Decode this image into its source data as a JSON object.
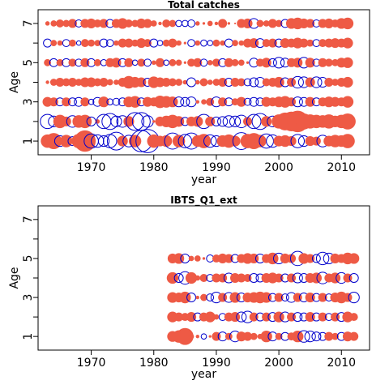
{
  "chart_data": [
    {
      "type": "scatter",
      "title": "Total catches",
      "xlabel": "year",
      "ylabel": "Age",
      "xlim": [
        1961.5,
        2014.5
      ],
      "ylim": [
        0.3,
        7.7
      ],
      "x_ticks": [
        1970,
        1980,
        1990,
        2000,
        2010
      ],
      "y_ticks": [
        1,
        3,
        5,
        7
      ],
      "ages": [
        1,
        2,
        3,
        4,
        5,
        6,
        7
      ],
      "years": [
        1963,
        1964,
        1965,
        1966,
        1967,
        1968,
        1969,
        1970,
        1971,
        1972,
        1973,
        1974,
        1975,
        1976,
        1977,
        1978,
        1979,
        1980,
        1981,
        1982,
        1983,
        1984,
        1985,
        1986,
        1987,
        1988,
        1989,
        1990,
        1991,
        1992,
        1993,
        1994,
        1995,
        1996,
        1997,
        1998,
        1999,
        2000,
        2001,
        2002,
        2003,
        2004,
        2005,
        2006,
        2007,
        2008,
        2009,
        2010,
        2011
      ],
      "positive_color": "#ee5a45",
      "negative_color": "#0000cc",
      "note_values": "signed residuals; positive = filled red, negative = open blue circle",
      "residuals": {
        "1": [
          1.5,
          1.8,
          -1.2,
          1.4,
          -1.0,
          1.6,
          2.4,
          -1.6,
          -1.4,
          -1.2,
          -1.5,
          -2.0,
          1.2,
          -1.3,
          1.4,
          -2.4,
          -2.6,
          1.5,
          1.2,
          1.3,
          -1.8,
          1.4,
          -1.5,
          -1.8,
          1.3,
          1.6,
          -1.4,
          -1.2,
          1.3,
          1.5,
          1.2,
          -1.9,
          1.6,
          1.8,
          1.4,
          -1.6,
          -1.4,
          1.2,
          1.3,
          1.1,
          -1.5,
          -1.2,
          1.1,
          1.0,
          -1.3,
          1.2,
          1.4,
          1.3,
          1.6
        ],
        "2": [
          -1.6,
          -1.2,
          1.5,
          1.1,
          -1.3,
          1.4,
          1.5,
          -1.0,
          0.5,
          -1.6,
          -1.8,
          -1.2,
          -1.3,
          1.2,
          -2.0,
          -2.0,
          -1.3,
          0.3,
          1.1,
          1.3,
          1.5,
          1.2,
          -0.9,
          1.1,
          1.2,
          -1.6,
          1.1,
          -1.0,
          -1.1,
          -1.3,
          -1.2,
          -1.4,
          1.0,
          -1.6,
          -1.8,
          1.2,
          -1.2,
          1.6,
          2.0,
          2.2,
          2.4,
          1.8,
          1.6,
          1.5,
          1.4,
          1.6,
          1.3,
          1.5,
          1.8
        ],
        "3": [
          1.1,
          1.0,
          -0.9,
          1.0,
          -0.9,
          -1.0,
          1.0,
          -0.6,
          -1.0,
          1.2,
          -0.7,
          -0.8,
          -0.9,
          1.2,
          1.3,
          -0.9,
          1.1,
          1.0,
          1.4,
          1.3,
          1.2,
          -1.1,
          -1.0,
          -1.1,
          0.4,
          0.6,
          0.9,
          -1.1,
          1.0,
          -0.9,
          0.8,
          1.1,
          -0.8,
          -1.0,
          -0.9,
          1.1,
          1.0,
          1.2,
          1.3,
          1.0,
          -1.1,
          -1.0,
          1.1,
          -0.9,
          1.0,
          1.2,
          1.1,
          1.0,
          1.3
        ],
        "4": [
          0.4,
          0.8,
          1.0,
          0.9,
          1.0,
          0.8,
          1.1,
          1.1,
          0.9,
          1.0,
          0.7,
          0.6,
          1.0,
          1.4,
          1.2,
          1.1,
          -0.9,
          1.3,
          1.1,
          1.0,
          0.9,
          0.8,
          0.5,
          -1.0,
          0.5,
          0.9,
          0.6,
          0.8,
          1.0,
          -0.9,
          1.0,
          0.9,
          -0.8,
          -1.0,
          -1.1,
          0.9,
          1.0,
          1.2,
          -1.0,
          1.0,
          -1.3,
          -1.2,
          1.1,
          -1.2,
          -1.1,
          1.0,
          0.8,
          1.0,
          1.2
        ],
        "5": [
          0.8,
          -0.9,
          0.8,
          -0.9,
          0.9,
          -0.8,
          1.0,
          -0.9,
          0.8,
          -0.7,
          1.0,
          1.1,
          -0.9,
          1.0,
          -0.6,
          0.9,
          -0.8,
          0.5,
          1.0,
          -0.6,
          0.8,
          0.7,
          0.3,
          0.9,
          1.0,
          -0.8,
          0.6,
          0.9,
          -0.9,
          1.0,
          0.8,
          0.7,
          0.3,
          -1.0,
          0.9,
          1.1,
          -0.9,
          -1.2,
          -1.0,
          1.0,
          1.1,
          -1.2,
          1.1,
          -0.8,
          1.0,
          0.9,
          0.8,
          1.1,
          1.2
        ],
        "6": [
          -0.9,
          0.7,
          0.6,
          -0.8,
          0.8,
          -0.5,
          0.9,
          0.8,
          0.7,
          -0.9,
          -0.8,
          0.6,
          1.0,
          1.0,
          0.8,
          1.1,
          0.9,
          -0.9,
          -0.6,
          0.8,
          1.0,
          0.6,
          0.3,
          -0.8,
          0.6,
          -0.7,
          -0.6,
          0.8,
          0.6,
          -0.9,
          0.7,
          0.6,
          1.0,
          1.1,
          -1.0,
          0.9,
          1.0,
          -0.9,
          1.1,
          1.0,
          1.2,
          1.0,
          0.8,
          -0.8,
          0.9,
          1.0,
          1.1,
          1.0,
          1.2
        ],
        "7": [
          0.5,
          0.7,
          0.9,
          0.8,
          1.0,
          -0.8,
          1.0,
          1.1,
          0.9,
          1.0,
          -0.9,
          1.0,
          1.2,
          0.9,
          0.8,
          1.1,
          1.0,
          0.7,
          0.4,
          0.9,
          0.8,
          -0.7,
          -0.7,
          -0.8,
          0.5,
          0.3,
          0.6,
          0.4,
          1.0,
          0.3,
          0.2,
          1.0,
          1.1,
          -1.1,
          0.8,
          0.7,
          1.0,
          0.8,
          -0.9,
          1.2,
          1.3,
          1.1,
          1.0,
          -0.8,
          1.0,
          1.1,
          0.9,
          1.2,
          1.3
        ]
      }
    },
    {
      "type": "scatter",
      "title": "IBTS_Q1_ext",
      "xlabel": "year",
      "ylabel": "Age",
      "xlim": [
        1961.5,
        2014.5
      ],
      "ylim": [
        0.3,
        7.7
      ],
      "x_ticks": [
        1970,
        1980,
        1990,
        2000,
        2010
      ],
      "y_ticks": [
        1,
        3,
        5,
        7
      ],
      "ages": [
        1,
        2,
        3,
        4,
        5
      ],
      "years": [
        1983,
        1984,
        1985,
        1986,
        1987,
        1988,
        1989,
        1990,
        1991,
        1992,
        1993,
        1994,
        1995,
        1996,
        1997,
        1998,
        1999,
        2000,
        2001,
        2002,
        2003,
        2004,
        2005,
        2006,
        2007,
        2008,
        2009,
        2010,
        2011,
        2012
      ],
      "positive_color": "#ee5a45",
      "negative_color": "#0000cc",
      "note_values": "signed residuals; positive = filled red, negative = open blue circle",
      "residuals": {
        "1": [
          1.2,
          1.4,
          1.9,
          0.6,
          0.4,
          -0.6,
          0.3,
          1.0,
          -1.0,
          0.8,
          -1.2,
          1.1,
          1.0,
          0.8,
          0.6,
          1.3,
          -1.0,
          0.8,
          -0.9,
          0.9,
          1.3,
          -1.3,
          -1.2,
          -1.0,
          -0.9,
          1.0,
          0.8,
          -0.9,
          1.1,
          1.0
        ],
        "2": [
          1.2,
          1.0,
          0.9,
          1.1,
          -0.9,
          1.0,
          1.2,
          0.6,
          -0.8,
          1.0,
          1.1,
          -1.1,
          -1.3,
          1.0,
          -0.9,
          1.0,
          -1.0,
          1.2,
          -1.1,
          1.0,
          -1.0,
          -0.9,
          1.1,
          -0.9,
          1.0,
          -0.8,
          1.0,
          -1.0,
          1.2,
          0.9
        ],
        "3": [
          1.2,
          1.1,
          1.3,
          -1.0,
          0.4,
          0.8,
          -0.8,
          -1.2,
          1.0,
          -1.1,
          1.2,
          -1.0,
          1.1,
          1.2,
          1.3,
          1.2,
          -0.9,
          1.0,
          -0.8,
          -1.1,
          1.0,
          -1.0,
          1.1,
          -0.9,
          1.0,
          -0.8,
          1.1,
          1.3,
          1.0,
          -1.2
        ],
        "4": [
          1.3,
          -1.0,
          -1.4,
          1.3,
          0.6,
          0.9,
          -0.8,
          1.0,
          1.0,
          -1.1,
          1.1,
          1.0,
          0.9,
          -1.0,
          -0.9,
          1.1,
          1.2,
          1.0,
          -0.9,
          1.0,
          -1.1,
          -1.0,
          1.1,
          1.2,
          -1.3,
          1.0,
          1.2,
          -1.2,
          1.0,
          -1.0
        ],
        "5": [
          1.1,
          1.2,
          -1.0,
          0.6,
          0.7,
          0.3,
          -0.8,
          0.9,
          1.1,
          1.0,
          -0.9,
          1.0,
          1.2,
          1.1,
          -1.0,
          1.0,
          1.3,
          -1.2,
          1.1,
          1.0,
          -1.6,
          1.2,
          1.0,
          -0.9,
          -1.4,
          -1.2,
          1.1,
          1.0,
          1.3,
          1.2
        ]
      }
    }
  ]
}
